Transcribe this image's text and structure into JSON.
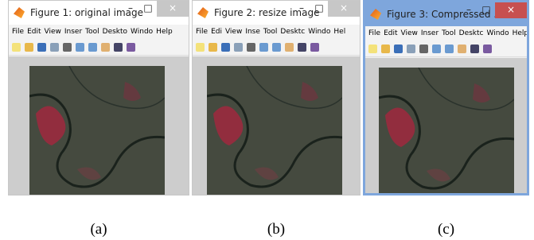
{
  "windows": [
    {
      "title": "Figure 1: original image",
      "menu": [
        "File",
        "Edit",
        "View",
        "Inser",
        "Tool",
        "Deskto",
        "Windo",
        "Help"
      ],
      "caption": "(a)"
    },
    {
      "title": "Figure 2: resize image",
      "menu": [
        "File",
        "Edi",
        "View",
        "Inse",
        "Tool",
        "Desktc",
        "Windo",
        "Hel"
      ],
      "caption": "(b)"
    },
    {
      "title": "Figure 3: Compressed ...",
      "menu": [
        "File",
        "Edit",
        "View",
        "Inser",
        "Tool",
        "Desktc",
        "Windo",
        "Help"
      ],
      "caption": "(c)"
    }
  ]
}
